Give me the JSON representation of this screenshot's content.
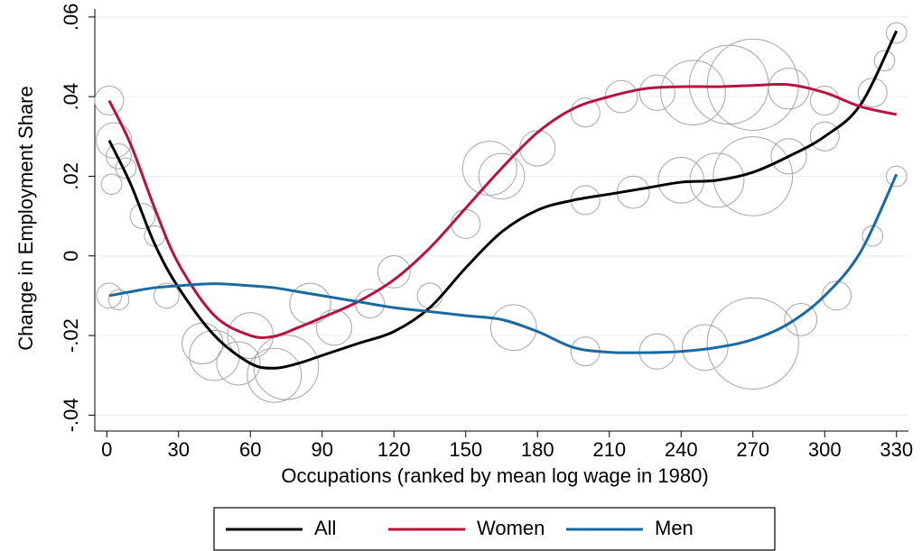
{
  "chart_data": {
    "type": "line",
    "xlabel": "Occupations (ranked by mean log wage in 1980)",
    "ylabel": "Change in Employment Share",
    "x": [
      1,
      10,
      20,
      30,
      45,
      60,
      70,
      80,
      90,
      105,
      120,
      135,
      150,
      165,
      180,
      195,
      210,
      225,
      240,
      255,
      270,
      285,
      300,
      315,
      330
    ],
    "series": [
      {
        "name": "All",
        "color": "#000000",
        "values": [
          0.029,
          0.018,
          0.003,
          -0.008,
          -0.02,
          -0.027,
          -0.0282,
          -0.027,
          -0.025,
          -0.022,
          -0.019,
          -0.013,
          -0.003,
          0.006,
          0.0115,
          0.014,
          0.0155,
          0.017,
          0.0185,
          0.019,
          0.021,
          0.025,
          0.03,
          0.038,
          0.0565
        ]
      },
      {
        "name": "Women",
        "color": "#b8123e",
        "values": [
          0.039,
          0.028,
          0.012,
          -0.002,
          -0.015,
          -0.02,
          -0.0202,
          -0.018,
          -0.0155,
          -0.0115,
          -0.006,
          0.002,
          0.012,
          0.022,
          0.031,
          0.037,
          0.04,
          0.042,
          0.0425,
          0.0425,
          0.0428,
          0.043,
          0.041,
          0.0375,
          0.0355
        ]
      },
      {
        "name": "Men",
        "color": "#1a6aa2",
        "values": [
          -0.01,
          -0.009,
          -0.008,
          -0.0075,
          -0.007,
          -0.0075,
          -0.008,
          -0.009,
          -0.01,
          -0.0115,
          -0.013,
          -0.014,
          -0.015,
          -0.016,
          -0.019,
          -0.023,
          -0.0242,
          -0.0243,
          -0.024,
          -0.023,
          -0.021,
          -0.017,
          -0.01,
          0.001,
          0.0205
        ]
      }
    ],
    "bubbles": {
      "color": "#a6a6a6",
      "x": [
        1,
        3,
        5,
        8,
        1,
        5,
        15,
        20,
        25,
        40,
        45,
        55,
        60,
        70,
        75,
        85,
        95,
        110,
        120,
        135,
        150,
        160,
        165,
        170,
        180,
        200,
        215,
        230,
        245,
        260,
        270,
        285,
        300,
        200,
        220,
        240,
        255,
        270,
        285,
        300,
        320,
        325,
        330,
        200,
        230,
        250,
        270,
        290,
        305,
        320,
        330,
        2
      ],
      "y": [
        0.039,
        0.029,
        0.025,
        0.022,
        -0.01,
        -0.011,
        0.01,
        0.005,
        -0.01,
        -0.022,
        -0.025,
        -0.027,
        -0.02,
        -0.03,
        -0.028,
        -0.012,
        -0.018,
        -0.012,
        -0.004,
        -0.01,
        0.008,
        0.022,
        0.02,
        -0.018,
        0.027,
        0.036,
        0.04,
        0.041,
        0.041,
        0.043,
        0.043,
        0.042,
        0.039,
        0.014,
        0.016,
        0.019,
        0.019,
        0.02,
        0.025,
        0.03,
        0.041,
        0.049,
        0.056,
        -0.024,
        -0.024,
        -0.023,
        -0.022,
        -0.016,
        -0.01,
        0.005,
        0.02,
        0.018
      ],
      "size": [
        4,
        6,
        3,
        2,
        3,
        2,
        3,
        2,
        3,
        8,
        12,
        9,
        10,
        14,
        20,
        8,
        6,
        4,
        5,
        3,
        4,
        14,
        10,
        10,
        6,
        4,
        5,
        6,
        20,
        30,
        40,
        8,
        4,
        4,
        5,
        10,
        14,
        30,
        6,
        4,
        4,
        2,
        2,
        4,
        6,
        10,
        40,
        5,
        4,
        2,
        2,
        2
      ]
    },
    "xlim": [
      -5,
      335
    ],
    "xticks": [
      0,
      30,
      60,
      90,
      120,
      150,
      180,
      210,
      240,
      270,
      300,
      330
    ],
    "ylim": [
      -0.044,
      0.062
    ],
    "yticks": [
      {
        "value": -0.04,
        "label": "-.04"
      },
      {
        "value": -0.02,
        "label": "-.02"
      },
      0,
      {
        "value": 0.02,
        "label": ".02"
      },
      {
        "value": 0.04,
        "label": ".04"
      },
      {
        "value": 0.06,
        "label": ".06"
      }
    ],
    "grid": true
  }
}
